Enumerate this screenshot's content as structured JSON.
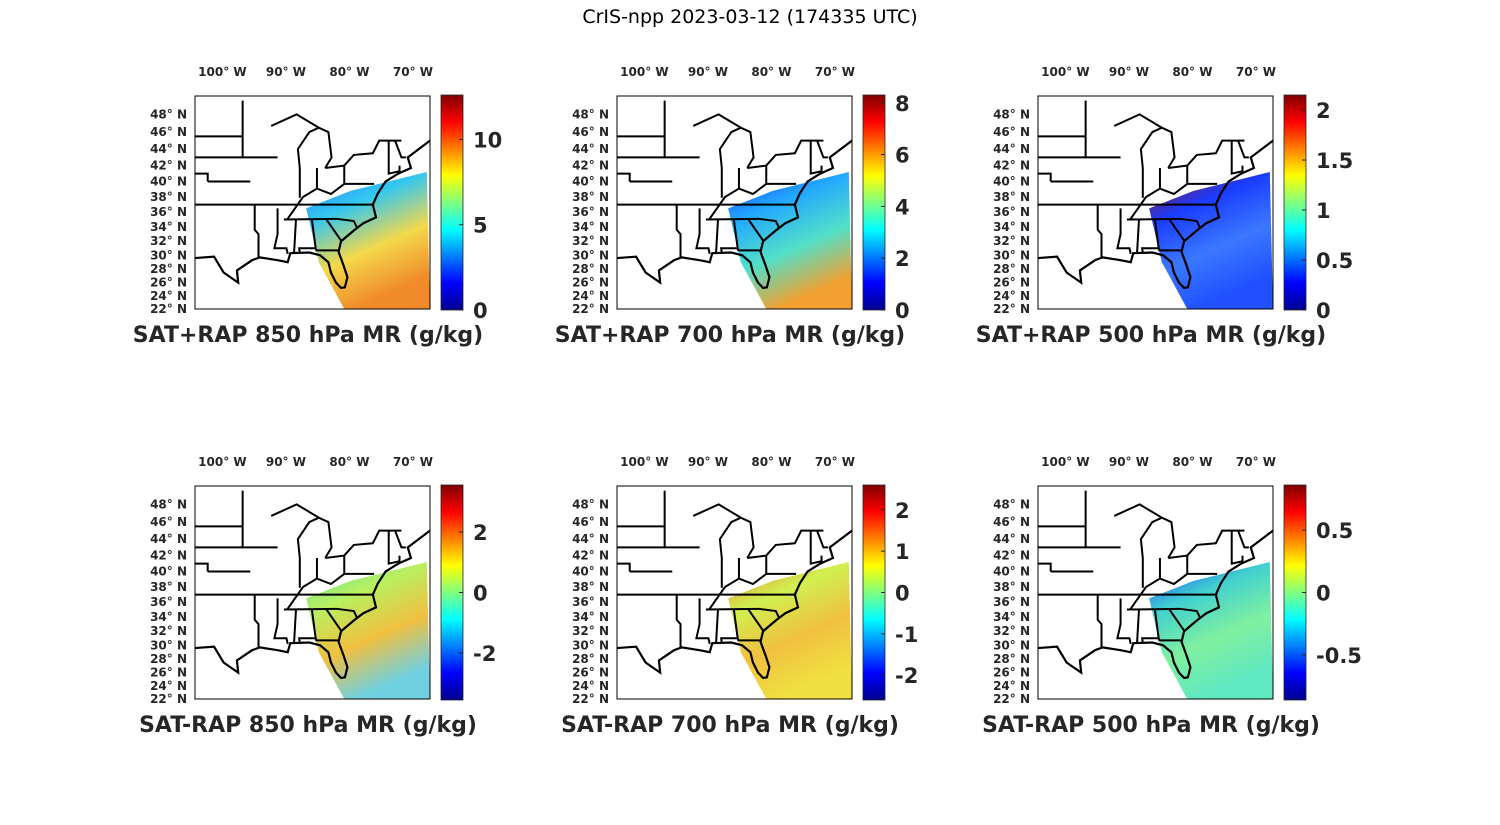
{
  "figure_title": "CrIS-npp 2023-03-12 (174335 UTC)",
  "chart_data": {
    "type": "heatmap",
    "lon_ticks": [
      "100° W",
      "90° W",
      "80° W",
      "70° W"
    ],
    "lon_tick_values": [
      -100,
      -90,
      -80,
      -70
    ],
    "lat_ticks": [
      "48° N",
      "46° N",
      "44° N",
      "42° N",
      "40° N",
      "38° N",
      "36° N",
      "34° N",
      "32° N",
      "30° N",
      "28° N",
      "26° N",
      "24° N",
      "22° N"
    ],
    "lat_tick_values": [
      48,
      46,
      44,
      42,
      40,
      38,
      36,
      34,
      32,
      30,
      28,
      26,
      24,
      22
    ],
    "lon_range": [
      -104,
      -67
    ],
    "lat_range": [
      22,
      50
    ],
    "colormap": "jet",
    "panels": [
      {
        "title": "SAT+RAP 850 hPa MR (g/kg)",
        "clim": [
          0,
          12.6
        ],
        "ticks": [
          0,
          5,
          10
        ],
        "tick_labels": [
          "0",
          "5",
          "10"
        ],
        "swath_colors": [
          "#2a7bff",
          "#33c8f0",
          "#f4d84a",
          "#f08a2a"
        ]
      },
      {
        "title": "SAT+RAP 700 hPa MR (g/kg)",
        "clim": [
          0,
          8.3
        ],
        "ticks": [
          0,
          2,
          4,
          6,
          8
        ],
        "tick_labels": [
          "0",
          "2",
          "4",
          "6",
          "8"
        ],
        "swath_colors": [
          "#1a40ff",
          "#22a8ff",
          "#52e0c8",
          "#f2a030"
        ]
      },
      {
        "title": "SAT+RAP 500 hPa MR (g/kg)",
        "clim": [
          0,
          2.15
        ],
        "ticks": [
          0,
          0.5,
          1,
          1.5,
          2
        ],
        "tick_labels": [
          "0",
          "0.5",
          "1",
          "1.5",
          "2"
        ],
        "swath_colors": [
          "#a01010",
          "#1a3cff",
          "#3a78ff",
          "#2050ff"
        ]
      },
      {
        "title": "SAT-RAP 850 hPa MR (g/kg)",
        "clim": [
          -3.55,
          3.55
        ],
        "ticks": [
          -2,
          0,
          2
        ],
        "tick_labels": [
          "-2",
          "0",
          "2"
        ],
        "swath_colors": [
          "#60e0a0",
          "#b8f060",
          "#f0c040",
          "#70d0e0"
        ]
      },
      {
        "title": "SAT-RAP 700 hPa MR (g/kg)",
        "clim": [
          -2.6,
          2.6
        ],
        "ticks": [
          -2,
          -1,
          0,
          1,
          2
        ],
        "tick_labels": [
          "-2",
          "-1",
          "0",
          "1",
          "2"
        ],
        "swath_colors": [
          "#f08030",
          "#d0f050",
          "#f0c040",
          "#f0e040"
        ]
      },
      {
        "title": "SAT-RAP 500 hPa MR (g/kg)",
        "clim": [
          -0.86,
          0.86
        ],
        "ticks": [
          -0.5,
          0,
          0.5
        ],
        "tick_labels": [
          "-0.5",
          "0",
          "0.5"
        ],
        "swath_colors": [
          "#1a3cff",
          "#40d0d0",
          "#80f0a0",
          "#60e8c0"
        ]
      }
    ]
  }
}
